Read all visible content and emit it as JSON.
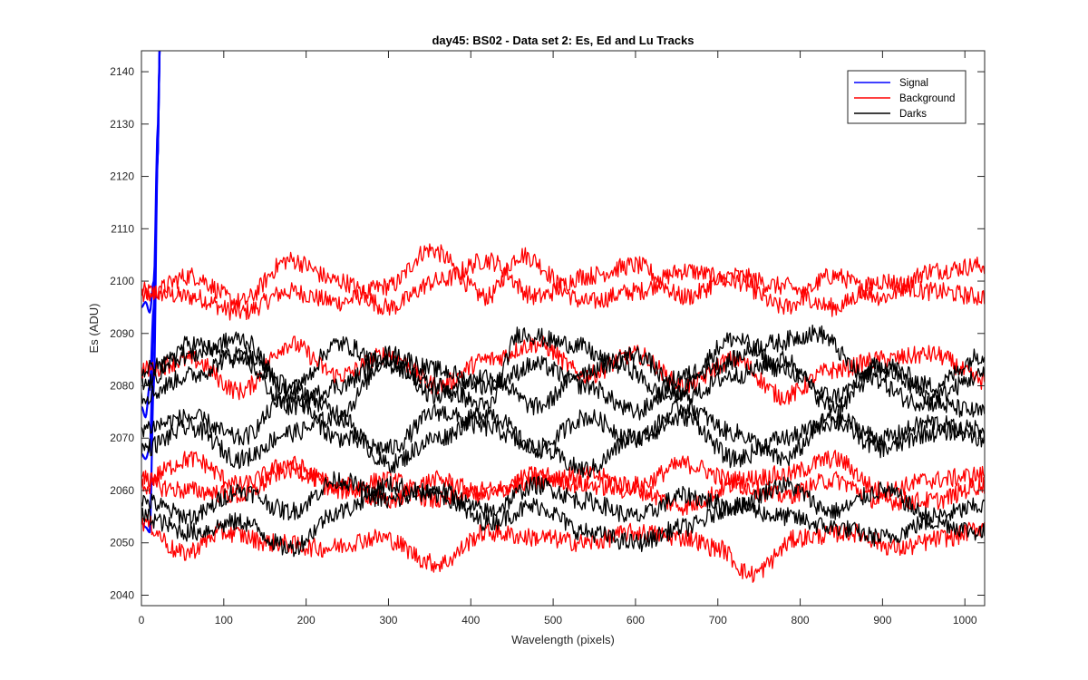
{
  "chart_data": {
    "type": "line",
    "title": "day45: BS02 - Data set 2: Es, Ed and Lu Tracks",
    "xlabel": "Wavelength (pixels)",
    "ylabel": "Es (ADU)",
    "xlim": [
      0,
      1024
    ],
    "ylim": [
      2038,
      2144
    ],
    "xticks": [
      0,
      100,
      200,
      300,
      400,
      500,
      600,
      700,
      800,
      900,
      1000
    ],
    "yticks": [
      2040,
      2050,
      2060,
      2070,
      2080,
      2090,
      2100,
      2110,
      2120,
      2130,
      2140
    ],
    "grid": false,
    "legend_position": "top-right",
    "legend": [
      {
        "name": "Signal",
        "color": "#0000ff"
      },
      {
        "name": "Background",
        "color": "#ff0000"
      },
      {
        "name": "Darks",
        "color": "#000000"
      }
    ],
    "series": [
      {
        "name": "Signal",
        "color": "#0000ff",
        "x": [
          0,
          5,
          10,
          15,
          20,
          22
        ],
        "y": [
          2095,
          2096,
          2094,
          2100,
          2130,
          2144
        ]
      },
      {
        "name": "Signal",
        "color": "#0000ff",
        "x": [
          0,
          5,
          10,
          15,
          20,
          22
        ],
        "y": [
          2076,
          2074,
          2080,
          2095,
          2125,
          2144
        ]
      },
      {
        "name": "Signal",
        "color": "#0000ff",
        "x": [
          0,
          5,
          10,
          15,
          20,
          22
        ],
        "y": [
          2067,
          2066,
          2068,
          2090,
          2125,
          2144
        ]
      },
      {
        "name": "Signal",
        "color": "#0000ff",
        "x": [
          0,
          5,
          10,
          15,
          20,
          22
        ],
        "y": [
          2054,
          2053,
          2052,
          2080,
          2125,
          2144
        ]
      },
      {
        "name": "Background",
        "color": "#ff0000",
        "x": [
          0,
          60,
          120,
          180,
          240,
          300,
          350,
          420,
          460,
          540,
          600,
          660,
          720,
          780,
          840,
          900,
          960,
          1024
        ],
        "y": [
          2098,
          2097,
          2094,
          2098,
          2096,
          2099,
          2106,
          2097,
          2105,
          2096,
          2098,
          2102,
          2100,
          2095,
          2101,
          2097,
          2102,
          2103
        ]
      },
      {
        "name": "Background",
        "color": "#ff0000",
        "x": [
          0,
          60,
          120,
          180,
          240,
          300,
          360,
          420,
          480,
          540,
          600,
          660,
          720,
          780,
          840,
          900,
          960,
          1024
        ],
        "y": [
          2097,
          2101,
          2096,
          2104,
          2100,
          2095,
          2100,
          2104,
          2097,
          2101,
          2103,
          2097,
          2101,
          2099,
          2095,
          2100,
          2098,
          2097
        ]
      },
      {
        "name": "Background",
        "color": "#ff0000",
        "x": [
          0,
          60,
          120,
          180,
          240,
          300,
          360,
          420,
          480,
          540,
          600,
          660,
          720,
          780,
          840,
          900,
          960,
          1024
        ],
        "y": [
          2083,
          2085,
          2079,
          2088,
          2082,
          2086,
          2080,
          2085,
          2088,
          2082,
          2086,
          2080,
          2085,
          2078,
          2083,
          2085,
          2086,
          2081
        ]
      },
      {
        "name": "Background",
        "color": "#ff0000",
        "x": [
          0,
          60,
          120,
          180,
          240,
          300,
          360,
          420,
          480,
          540,
          600,
          660,
          720,
          780,
          840,
          900,
          960,
          1024
        ],
        "y": [
          2062,
          2066,
          2061,
          2065,
          2060,
          2062,
          2058,
          2060,
          2062,
          2063,
          2061,
          2065,
          2062,
          2063,
          2066,
          2060,
          2062,
          2063
        ]
      },
      {
        "name": "Background",
        "color": "#ff0000",
        "x": [
          0,
          60,
          120,
          180,
          240,
          300,
          360,
          420,
          480,
          540,
          600,
          660,
          720,
          780,
          840,
          900,
          960,
          1024
        ],
        "y": [
          2061,
          2060,
          2059,
          2064,
          2061,
          2058,
          2062,
          2059,
          2063,
          2061,
          2060,
          2057,
          2061,
          2059,
          2062,
          2058,
          2058,
          2061
        ]
      },
      {
        "name": "Background",
        "color": "#ff0000",
        "x": [
          0,
          50,
          100,
          160,
          220,
          290,
          360,
          420,
          480,
          540,
          600,
          660,
          700,
          740,
          800,
          860,
          920,
          980,
          1024
        ],
        "y": [
          2054,
          2048,
          2052,
          2050,
          2049,
          2051,
          2046,
          2052,
          2051,
          2050,
          2052,
          2051,
          2049,
          2044,
          2051,
          2052,
          2049,
          2051,
          2053
        ]
      },
      {
        "name": "Darks",
        "color": "#000000",
        "x": [
          0,
          60,
          120,
          180,
          240,
          300,
          360,
          420,
          460,
          520,
          580,
          640,
          700,
          760,
          820,
          880,
          940,
          1024
        ],
        "y": [
          2083,
          2086,
          2089,
          2079,
          2088,
          2084,
          2080,
          2076,
          2090,
          2088,
          2084,
          2078,
          2084,
          2088,
          2090,
          2082,
          2077,
          2075
        ]
      },
      {
        "name": "Darks",
        "color": "#000000",
        "x": [
          0,
          60,
          120,
          180,
          240,
          300,
          360,
          420,
          480,
          540,
          600,
          660,
          720,
          780,
          840,
          900,
          960,
          1024
        ],
        "y": [
          2080,
          2088,
          2085,
          2076,
          2080,
          2086,
          2083,
          2080,
          2084,
          2080,
          2075,
          2082,
          2089,
          2083,
          2078,
          2084,
          2080,
          2086
        ]
      },
      {
        "name": "Darks",
        "color": "#000000",
        "x": [
          0,
          60,
          120,
          180,
          240,
          300,
          360,
          420,
          480,
          540,
          600,
          660,
          720,
          780,
          840,
          900,
          960,
          1024
        ],
        "y": [
          2078,
          2082,
          2086,
          2080,
          2075,
          2085,
          2078,
          2082,
          2076,
          2083,
          2086,
          2078,
          2082,
          2085,
          2076,
          2083,
          2078,
          2082
        ]
      },
      {
        "name": "Darks",
        "color": "#000000",
        "x": [
          0,
          60,
          120,
          180,
          240,
          300,
          360,
          420,
          480,
          540,
          600,
          660,
          720,
          780,
          840,
          900,
          960,
          1024
        ],
        "y": [
          2072,
          2074,
          2070,
          2078,
          2070,
          2068,
          2075,
          2072,
          2068,
          2074,
          2070,
          2076,
          2071,
          2066,
          2074,
          2070,
          2073,
          2070
        ]
      },
      {
        "name": "Darks",
        "color": "#000000",
        "x": [
          0,
          60,
          120,
          180,
          240,
          300,
          360,
          420,
          480,
          540,
          600,
          660,
          720,
          780,
          840,
          900,
          960,
          1024
        ],
        "y": [
          2068,
          2072,
          2066,
          2071,
          2074,
          2065,
          2070,
          2075,
          2068,
          2064,
          2070,
          2074,
          2066,
          2070,
          2073,
          2068,
          2071,
          2072
        ]
      },
      {
        "name": "Darks",
        "color": "#000000",
        "x": [
          0,
          60,
          120,
          180,
          240,
          300,
          360,
          420,
          480,
          540,
          600,
          660,
          720,
          780,
          840,
          900,
          960,
          1024
        ],
        "y": [
          2058,
          2055,
          2060,
          2056,
          2062,
          2058,
          2060,
          2056,
          2061,
          2058,
          2055,
          2059,
          2057,
          2061,
          2056,
          2060,
          2055,
          2057
        ]
      },
      {
        "name": "Darks",
        "color": "#000000",
        "x": [
          0,
          60,
          120,
          180,
          240,
          300,
          360,
          420,
          480,
          540,
          600,
          660,
          720,
          780,
          840,
          900,
          960,
          1024
        ],
        "y": [
          2055,
          2052,
          2054,
          2049,
          2056,
          2061,
          2059,
          2054,
          2057,
          2052,
          2050,
          2053,
          2057,
          2055,
          2053,
          2051,
          2054,
          2052
        ]
      }
    ]
  }
}
